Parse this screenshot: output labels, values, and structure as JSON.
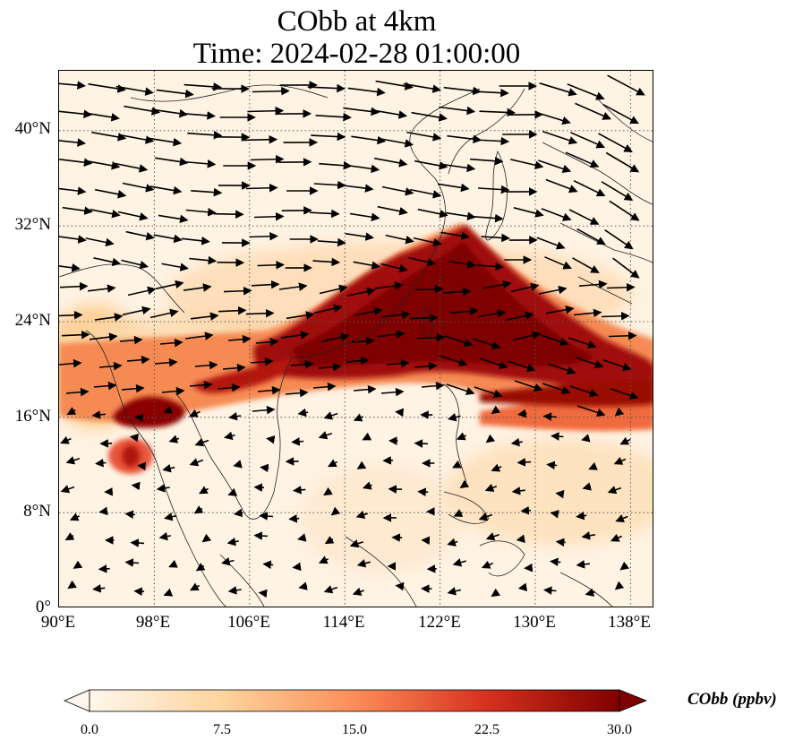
{
  "title": {
    "line1": "CObb at 4km",
    "line2": "Time: 2024-02-28 01:00:00"
  },
  "map": {
    "lon_range": [
      90,
      140
    ],
    "lat_range": [
      0,
      45
    ],
    "lat_ticks": [
      "40°N",
      "32°N",
      "24°N",
      "16°N",
      "8°N",
      "0°"
    ],
    "lon_ticks": [
      "90°E",
      "98°E",
      "106°E",
      "114°E",
      "122°E",
      "130°E",
      "138°E"
    ]
  },
  "colorbar": {
    "label": "CObb (ppbv)",
    "ticks": [
      "0.0",
      "7.5",
      "15.0",
      "22.5",
      "30.0"
    ],
    "range": [
      0,
      30
    ],
    "colors": [
      "#fff7ec",
      "#fdd49e",
      "#fc8d59",
      "#d7301f",
      "#7f0000"
    ]
  }
}
